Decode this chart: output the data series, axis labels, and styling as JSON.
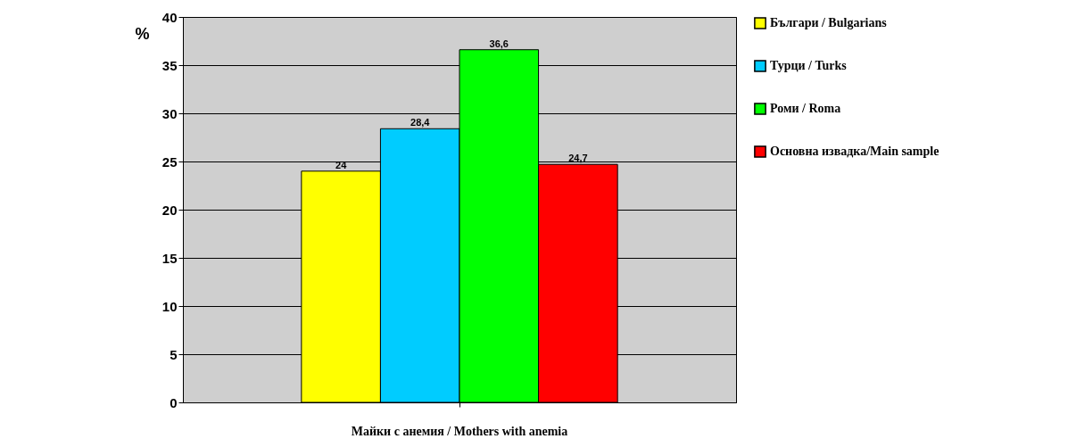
{
  "chart_data": {
    "type": "bar",
    "categories": [
      "Майки с анемия / Mothers with anemia"
    ],
    "series": [
      {
        "name": "Българи / Bulgarians",
        "color": "#ffff00",
        "values": [
          24
        ],
        "value_labels": [
          "24"
        ]
      },
      {
        "name": "Турци / Turks",
        "color": "#00ccff",
        "values": [
          28.4
        ],
        "value_labels": [
          "28,4"
        ]
      },
      {
        "name": "Роми / Roma",
        "color": "#00ff00",
        "values": [
          36.6
        ],
        "value_labels": [
          "36,6"
        ]
      },
      {
        "name": "Основна извадка/Main sample",
        "color": "#ff0000",
        "values": [
          24.7
        ],
        "value_labels": [
          "24,7"
        ]
      }
    ],
    "ylabel": "%",
    "ylim": [
      0,
      40
    ],
    "yticks": [
      0,
      5,
      10,
      15,
      20,
      25,
      30,
      35,
      40
    ],
    "grid": "y",
    "legend": "right"
  }
}
